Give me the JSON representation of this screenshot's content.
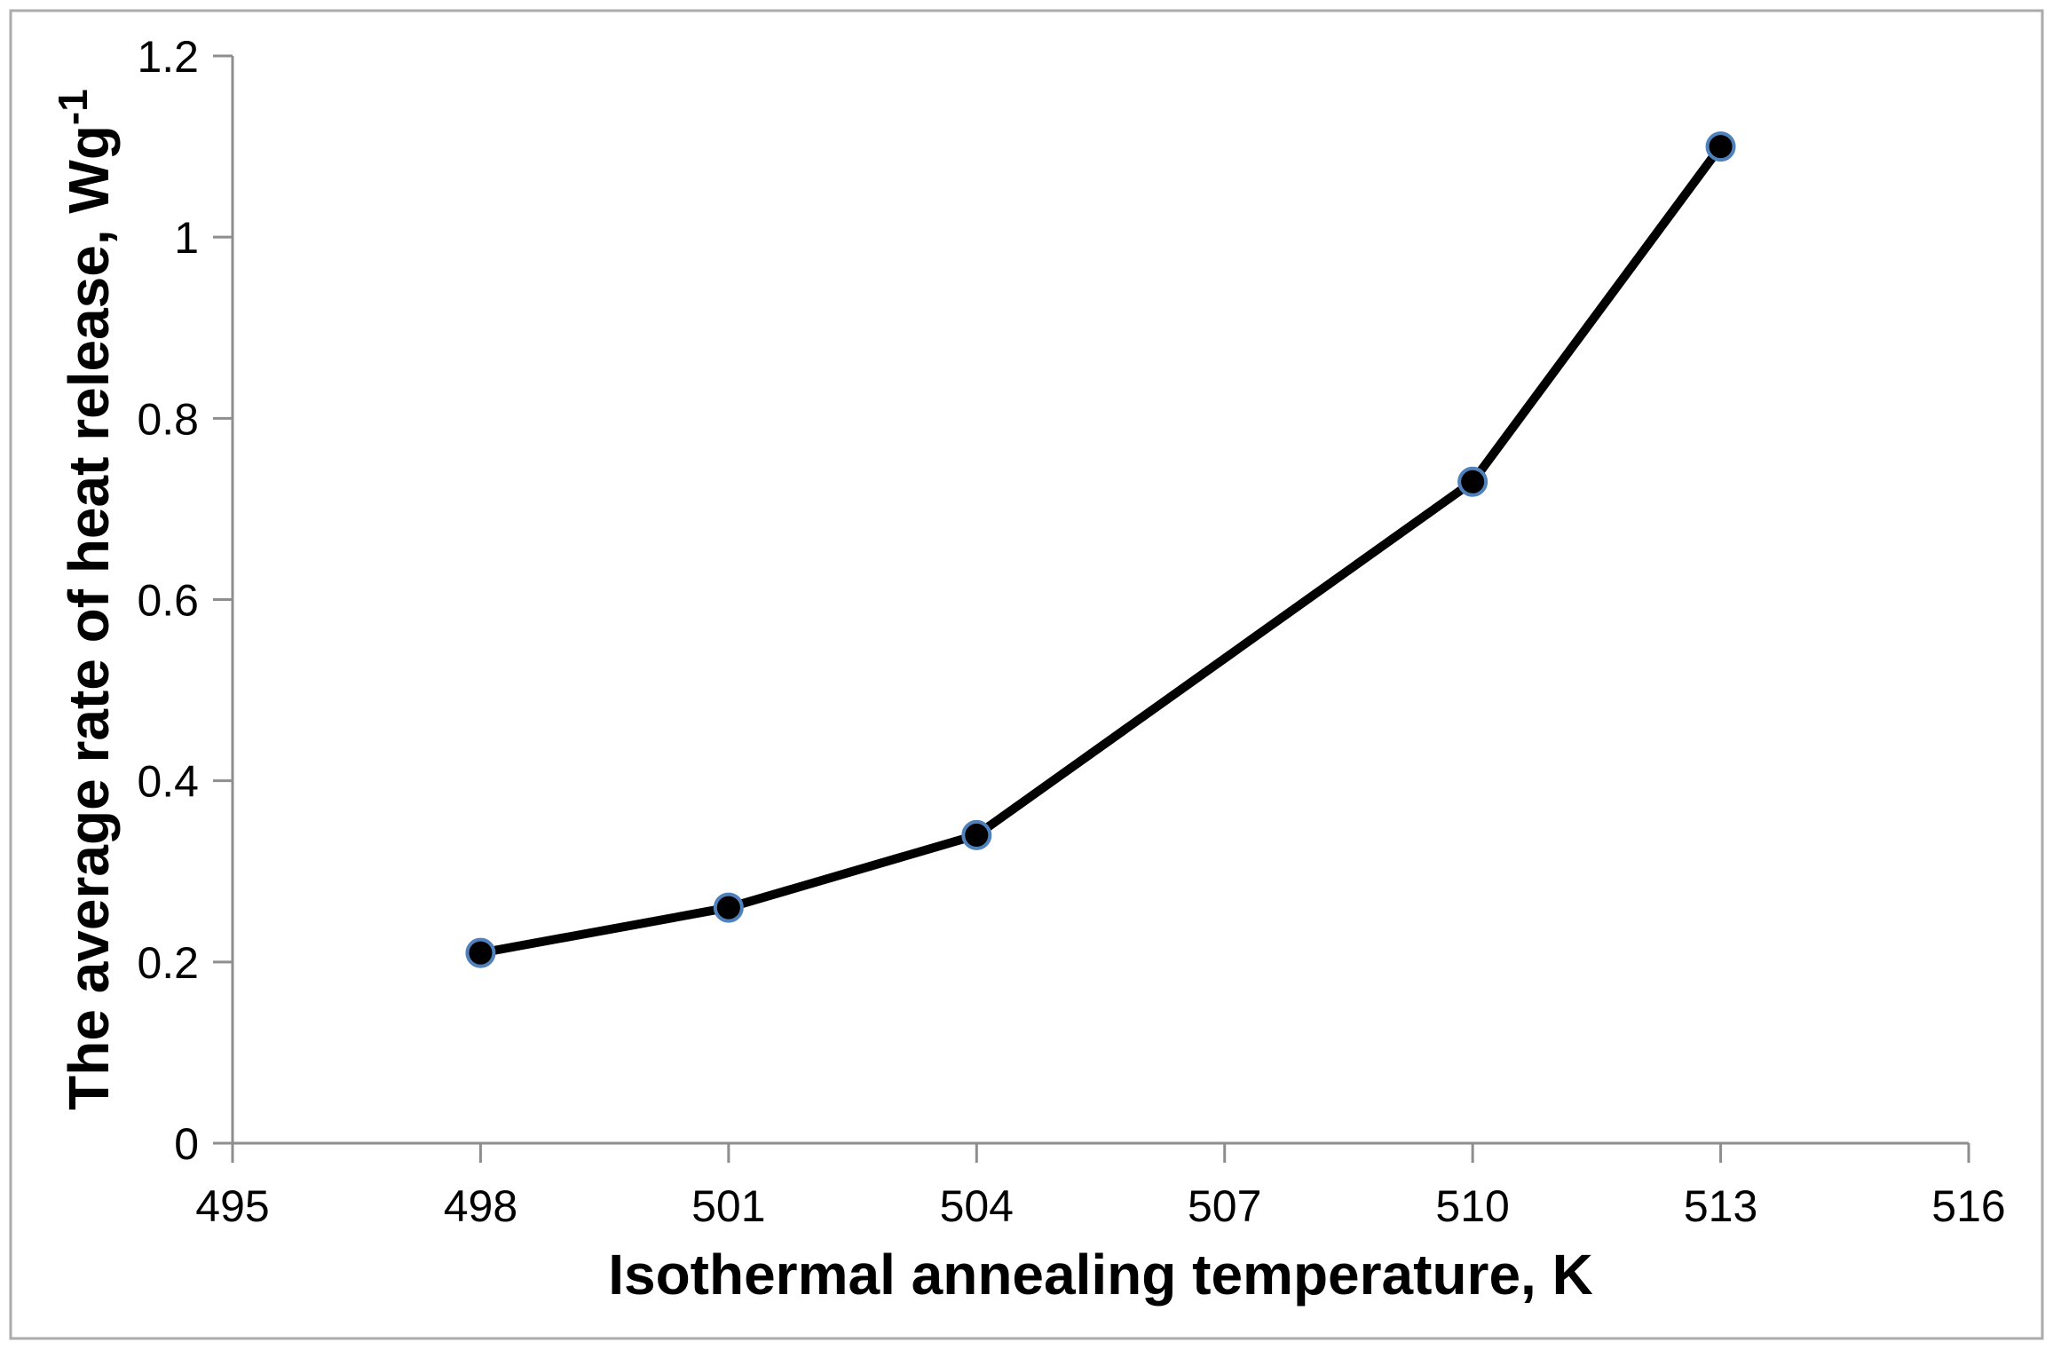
{
  "chart_data": {
    "type": "line",
    "title": "",
    "xlabel": "Isothermal annealing temperature, K",
    "ylabel_main": "The average rate of heat release, Wg",
    "ylabel_superscript": "-1",
    "series": [
      {
        "name": "average-rate-of-heat-release",
        "x": [
          498,
          501,
          504,
          510,
          513
        ],
        "y": [
          0.21,
          0.26,
          0.34,
          0.73,
          1.1
        ]
      }
    ],
    "xlim": [
      495,
      516
    ],
    "ylim": [
      0,
      1.2
    ],
    "x_ticks": [
      495,
      498,
      501,
      504,
      507,
      510,
      513,
      516
    ],
    "x_tick_labels": [
      "495",
      "498",
      "501",
      "504",
      "507",
      "510",
      "513",
      "516"
    ],
    "y_ticks": [
      0,
      0.2,
      0.4,
      0.6,
      0.8,
      1,
      1.2
    ],
    "y_tick_labels": [
      "0",
      "0.2",
      "0.4",
      "0.6",
      "0.8",
      "1",
      "1.2"
    ],
    "grid": false,
    "legend_position": "none",
    "colors": {
      "line": "#000000",
      "marker_fill": "#000000",
      "marker_edge": "#4f81bd",
      "axis": "#8e8e8e",
      "tick": "#8e8e8e",
      "text": "#000000",
      "frame_border": "#ababab",
      "background": "#ffffff"
    },
    "marker": {
      "shape": "circle",
      "radius": 15,
      "edge_width": 4
    },
    "line_width": 10
  }
}
